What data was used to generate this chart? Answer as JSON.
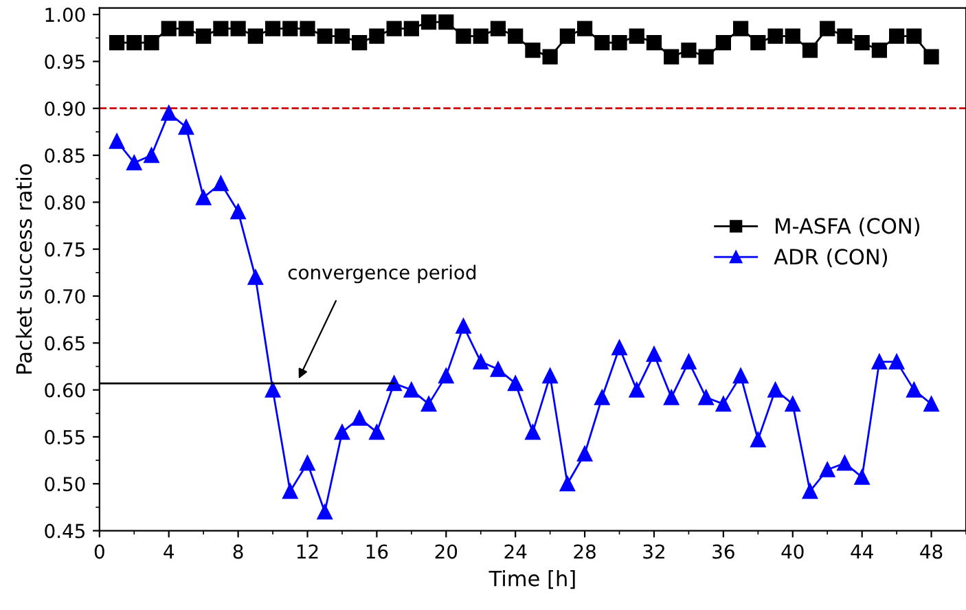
{
  "chart_data": {
    "type": "line",
    "xlabel": "Time [h]",
    "ylabel": "Packet success ratio",
    "x": [
      1,
      2,
      3,
      4,
      5,
      6,
      7,
      8,
      9,
      10,
      11,
      12,
      13,
      14,
      15,
      16,
      17,
      18,
      19,
      20,
      21,
      22,
      23,
      24,
      25,
      26,
      27,
      28,
      29,
      30,
      31,
      32,
      33,
      34,
      35,
      36,
      37,
      38,
      39,
      40,
      41,
      42,
      43,
      44,
      45,
      46,
      47,
      48
    ],
    "series": [
      {
        "name": "M-ASFA (CON)",
        "color": "#000000",
        "marker": "square",
        "values": [
          0.97,
          0.97,
          0.97,
          0.985,
          0.985,
          0.977,
          0.985,
          0.985,
          0.977,
          0.985,
          0.985,
          0.985,
          0.977,
          0.977,
          0.97,
          0.977,
          0.985,
          0.985,
          0.992,
          0.992,
          0.977,
          0.977,
          0.985,
          0.977,
          0.962,
          0.955,
          0.977,
          0.985,
          0.97,
          0.97,
          0.977,
          0.97,
          0.955,
          0.962,
          0.955,
          0.97,
          0.985,
          0.97,
          0.977,
          0.977,
          0.962,
          0.985,
          0.977,
          0.97,
          0.962,
          0.977,
          0.977,
          0.955
        ]
      },
      {
        "name": "ADR (CON)",
        "color": "#0000ff",
        "marker": "triangle",
        "values": [
          0.865,
          0.842,
          0.85,
          0.895,
          0.88,
          0.805,
          0.82,
          0.79,
          0.72,
          0.6,
          0.492,
          0.522,
          0.47,
          0.555,
          0.57,
          0.555,
          0.607,
          0.6,
          0.585,
          0.615,
          0.668,
          0.63,
          0.622,
          0.607,
          0.555,
          0.615,
          0.5,
          0.532,
          0.592,
          0.645,
          0.6,
          0.638,
          0.592,
          0.63,
          0.592,
          0.585,
          0.615,
          0.547,
          0.6,
          0.585,
          0.492,
          0.515,
          0.522,
          0.507,
          0.63,
          0.63,
          0.6,
          0.585
        ]
      },
      {
        "color": "#000000",
        "marker": "none",
        "x": [
          0,
          17
        ],
        "values": [
          0.607,
          0.607
        ]
      }
    ],
    "ref_lines": [
      {
        "axis": "y",
        "value": 0.9,
        "color": "#cc0000",
        "line_style": "dashed"
      }
    ],
    "annotations": [
      {
        "text": "convergence period",
        "x": 11.5,
        "y": 0.612
      }
    ],
    "xlim": [
      0,
      50
    ],
    "xticks": [
      0,
      4,
      8,
      12,
      16,
      20,
      24,
      28,
      32,
      36,
      40,
      44,
      48
    ],
    "ylim": [
      0.45,
      1.007
    ],
    "yticks": [
      {
        "value": 0.45,
        "label": "0.45"
      },
      {
        "value": 0.5,
        "label": "0.50"
      },
      {
        "value": 0.55,
        "label": "0.55"
      },
      {
        "value": 0.6,
        "label": "0.60"
      },
      {
        "value": 0.65,
        "label": "0.65"
      },
      {
        "value": 0.7,
        "label": "0.70"
      },
      {
        "value": 0.75,
        "label": "0.75"
      },
      {
        "value": 0.8,
        "label": "0.80"
      },
      {
        "value": 0.85,
        "label": "0.85"
      },
      {
        "value": 0.9,
        "label": "0.90"
      },
      {
        "value": 0.95,
        "label": "0.95"
      },
      {
        "value": 1.0,
        "label": "1.00"
      }
    ],
    "legend": "right",
    "grid": false
  }
}
